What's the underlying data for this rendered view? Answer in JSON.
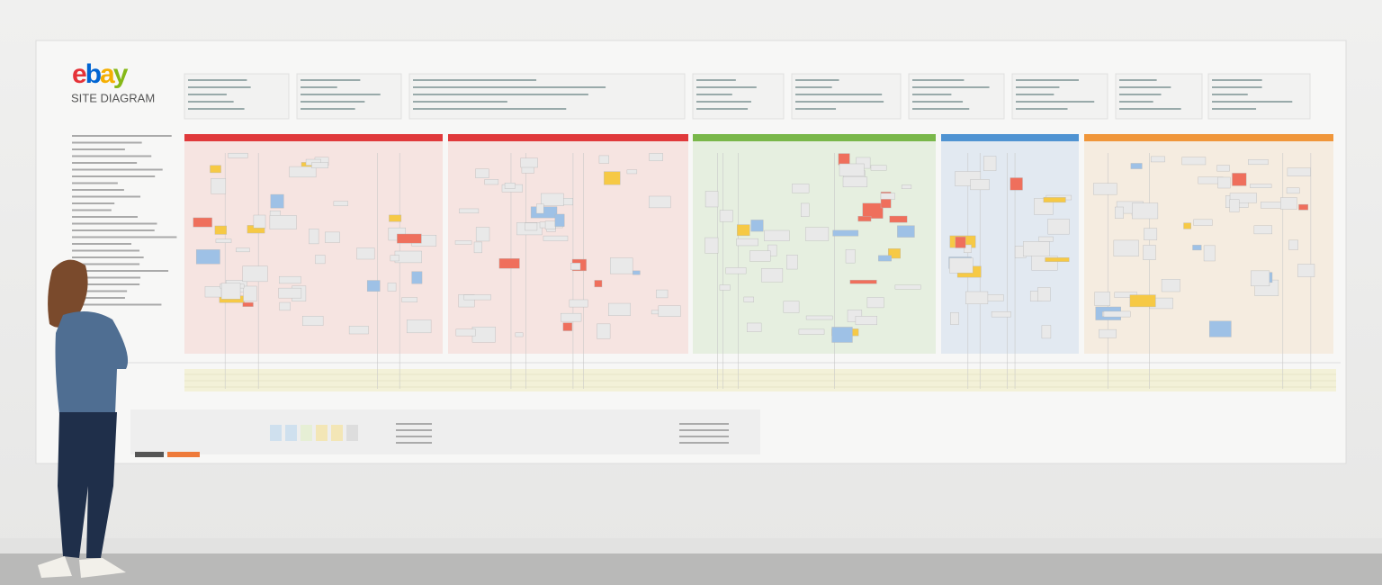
{
  "header": {
    "logo": "ebay",
    "title": "SITE DIAGRAM"
  }
}
